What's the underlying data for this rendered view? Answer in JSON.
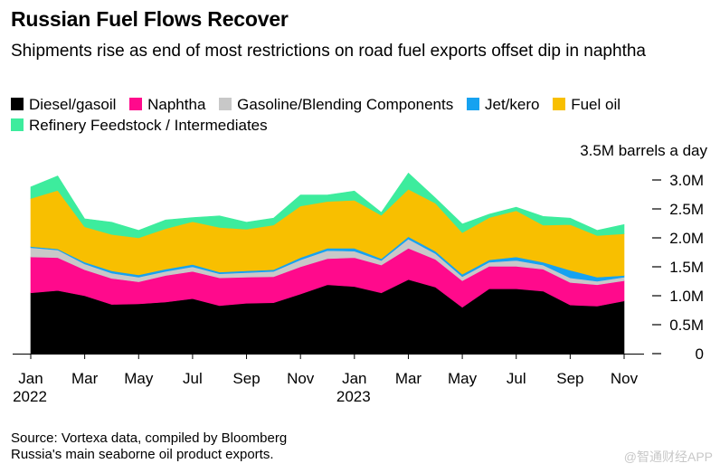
{
  "header": {
    "title": "Russian Fuel Flows Recover",
    "subtitle": "Shipments rise as end of most restrictions on road fuel exports offset dip in naphtha"
  },
  "chart_data": {
    "type": "area",
    "stacked": true,
    "unit_label": "3.5M barrels a day",
    "x": [
      "2022-01",
      "2022-02",
      "2022-03",
      "2022-04",
      "2022-05",
      "2022-06",
      "2022-07",
      "2022-08",
      "2022-09",
      "2022-10",
      "2022-11",
      "2022-12",
      "2023-01",
      "2023-02",
      "2023-03",
      "2023-04",
      "2023-05",
      "2023-06",
      "2023-07",
      "2023-08",
      "2023-09",
      "2023-10",
      "2023-11"
    ],
    "x_tick_labels": [
      {
        "month": "Jan",
        "year": "2022"
      },
      {
        "month": "Mar",
        "year": ""
      },
      {
        "month": "May",
        "year": ""
      },
      {
        "month": "Jul",
        "year": ""
      },
      {
        "month": "Sep",
        "year": ""
      },
      {
        "month": "Nov",
        "year": ""
      },
      {
        "month": "Jan",
        "year": "2023"
      },
      {
        "month": "Mar",
        "year": ""
      },
      {
        "month": "May",
        "year": ""
      },
      {
        "month": "Jul",
        "year": ""
      },
      {
        "month": "Sep",
        "year": ""
      },
      {
        "month": "Nov",
        "year": ""
      }
    ],
    "y_ticks": [
      "0",
      "0.5M",
      "1.0M",
      "1.5M",
      "2.0M",
      "2.5M",
      "3.0M"
    ],
    "ylim": [
      0,
      3.5
    ],
    "series": [
      {
        "name": "Diesel/gasoil",
        "color": "#000000",
        "values": [
          1.05,
          1.09,
          1.0,
          0.85,
          0.86,
          0.89,
          0.95,
          0.83,
          0.87,
          0.88,
          1.03,
          1.19,
          1.16,
          1.05,
          1.28,
          1.15,
          0.8,
          1.12,
          1.12,
          1.08,
          0.84,
          0.82,
          0.91
        ]
      },
      {
        "name": "Naphtha",
        "color": "#ff0a8c",
        "values": [
          0.62,
          0.57,
          0.45,
          0.45,
          0.38,
          0.46,
          0.47,
          0.48,
          0.45,
          0.45,
          0.47,
          0.45,
          0.5,
          0.48,
          0.54,
          0.48,
          0.46,
          0.39,
          0.39,
          0.38,
          0.39,
          0.37,
          0.35
        ]
      },
      {
        "name": "Gasoline/Blending Components",
        "color": "#c8c8c8",
        "values": [
          0.16,
          0.13,
          0.1,
          0.09,
          0.08,
          0.07,
          0.08,
          0.07,
          0.08,
          0.09,
          0.12,
          0.14,
          0.11,
          0.08,
          0.16,
          0.1,
          0.07,
          0.07,
          0.1,
          0.07,
          0.08,
          0.06,
          0.06
        ]
      },
      {
        "name": "Jet/kero",
        "color": "#16a2f0",
        "values": [
          0.02,
          0.02,
          0.03,
          0.04,
          0.04,
          0.04,
          0.04,
          0.03,
          0.03,
          0.03,
          0.04,
          0.04,
          0.05,
          0.03,
          0.04,
          0.04,
          0.04,
          0.04,
          0.06,
          0.05,
          0.13,
          0.07,
          0.03
        ]
      },
      {
        "name": "Fuel oil",
        "color": "#f8bf00",
        "values": [
          0.83,
          1.01,
          0.61,
          0.63,
          0.64,
          0.7,
          0.74,
          0.77,
          0.72,
          0.77,
          0.89,
          0.81,
          0.83,
          0.75,
          0.82,
          0.83,
          0.72,
          0.73,
          0.8,
          0.64,
          0.79,
          0.72,
          0.72
        ]
      },
      {
        "name": "Refinery Feedstock / Intermediates",
        "color": "#3dec9d",
        "values": [
          0.2,
          0.25,
          0.14,
          0.21,
          0.13,
          0.15,
          0.07,
          0.2,
          0.12,
          0.12,
          0.19,
          0.11,
          0.16,
          0.05,
          0.28,
          0.09,
          0.15,
          0.06,
          0.06,
          0.15,
          0.11,
          0.09,
          0.16
        ]
      }
    ]
  },
  "footer": {
    "source": "Source: Vortexa data, compiled by Bloomberg",
    "note": "Russia's main seaborne oil product exports."
  },
  "watermark": "@智通财经APP"
}
